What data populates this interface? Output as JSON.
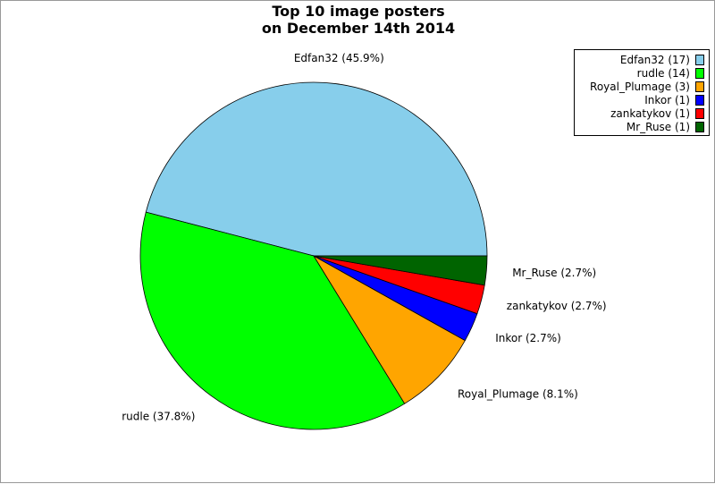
{
  "chart_data": {
    "type": "pie",
    "title_lines": [
      "Top 10 image posters",
      "on December 14th 2014"
    ],
    "slices": [
      {
        "name": "Edfan32",
        "count": 17,
        "percent": 45.9,
        "color": "#87ceeb",
        "label": "Edfan32 (45.9%)",
        "legend": "Edfan32 (17)"
      },
      {
        "name": "rudle",
        "count": 14,
        "percent": 37.8,
        "color": "#00ff00",
        "label": "rudle (37.8%)",
        "legend": "rudle (14)"
      },
      {
        "name": "Royal_Plumage",
        "count": 3,
        "percent": 8.1,
        "color": "#ffa500",
        "label": "Royal_Plumage (8.1%)",
        "legend": "Royal_Plumage (3)"
      },
      {
        "name": "Inkor",
        "count": 1,
        "percent": 2.7,
        "color": "#0000ff",
        "label": "Inkor (2.7%)",
        "legend": "Inkor (1)"
      },
      {
        "name": "zankatykov",
        "count": 1,
        "percent": 2.7,
        "color": "#ff0000",
        "label": "zankatykov (2.7%)",
        "legend": "zankatykov (1)"
      },
      {
        "name": "Mr_Ruse",
        "count": 1,
        "percent": 2.7,
        "color": "#006400",
        "label": "Mr_Ruse (2.7%)",
        "legend": "Mr_Ruse (1)"
      }
    ],
    "start_angle_deg": 0,
    "direction": "counterclockwise",
    "legend_position": "top-right"
  }
}
